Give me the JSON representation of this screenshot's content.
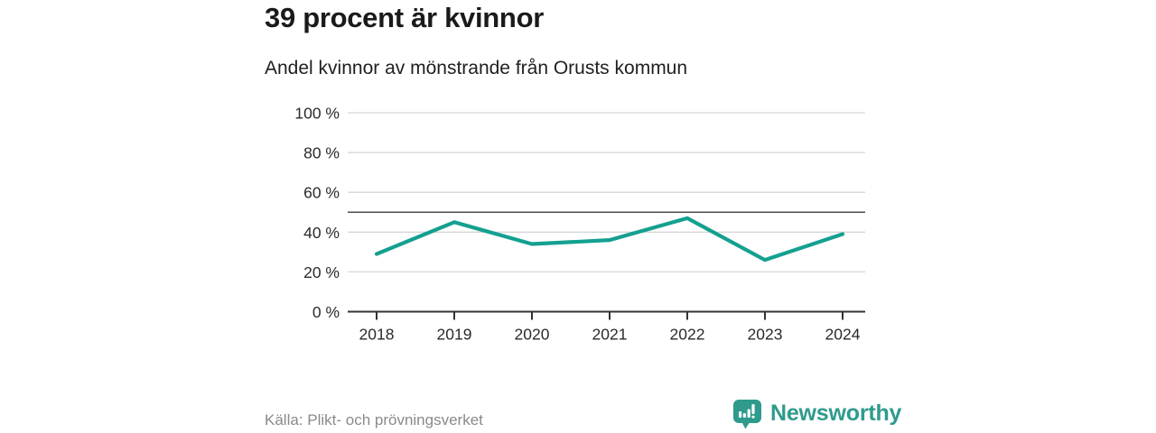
{
  "chart_data": {
    "type": "line",
    "title": "39 procent är kvinnor",
    "subtitle": "Andel kvinnor av mönstrande från Orusts kommun",
    "x": [
      2018,
      2019,
      2020,
      2021,
      2022,
      2023,
      2024
    ],
    "series": [
      {
        "name": "Andel kvinnor av mönstrande",
        "values": [
          29,
          45,
          34,
          36,
          47,
          26,
          39
        ]
      }
    ],
    "ylim": [
      0,
      100
    ],
    "yticks": [
      0,
      20,
      40,
      60,
      80,
      100
    ],
    "ytick_suffix": " %",
    "xlabel": "",
    "ylabel": "",
    "reference_line": 50,
    "grid": true,
    "legend": "none",
    "colors": {
      "line": "#14a090",
      "grid": "#d6d6d6",
      "axis": "#333333",
      "reference": "#4d4d4d",
      "tick_label": "#2b2b2b"
    }
  },
  "footer": {
    "source": "Källa: Plikt- och prövningsverket",
    "brand": {
      "name": "Newsworthy",
      "color": "#2e9b8d",
      "icon": "chart-speech-bubble-icon"
    }
  }
}
